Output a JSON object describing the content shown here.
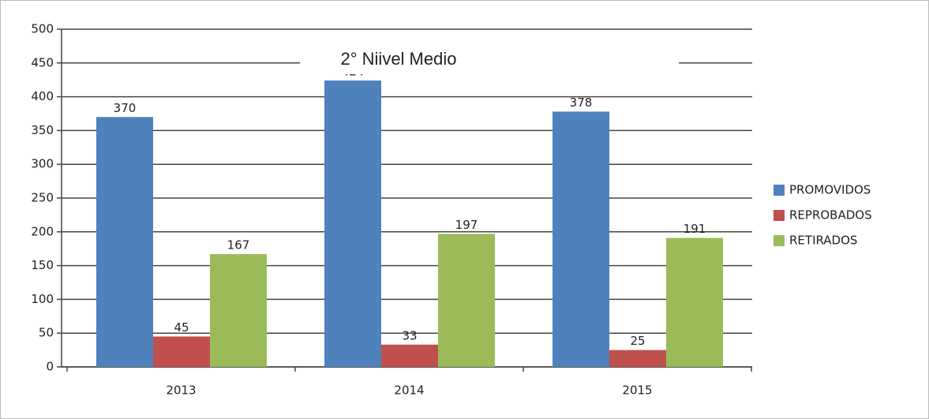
{
  "chart_data": {
    "type": "bar",
    "title": "2° Niivel Medio",
    "categories": [
      "2013",
      "2014",
      "2015"
    ],
    "series": [
      {
        "name": "PROMOVIDOS",
        "color": "#4f81bd",
        "values": [
          370,
          424,
          378
        ]
      },
      {
        "name": "REPROBADOS",
        "color": "#c0504d",
        "values": [
          45,
          33,
          25
        ]
      },
      {
        "name": "RETIRADOS",
        "color": "#9bbb59",
        "values": [
          167,
          197,
          191
        ]
      }
    ],
    "ylim": [
      0,
      500
    ],
    "yticks": [
      0,
      50,
      100,
      150,
      200,
      250,
      300,
      350,
      400,
      450,
      500
    ],
    "grid": true,
    "legend": "right"
  }
}
